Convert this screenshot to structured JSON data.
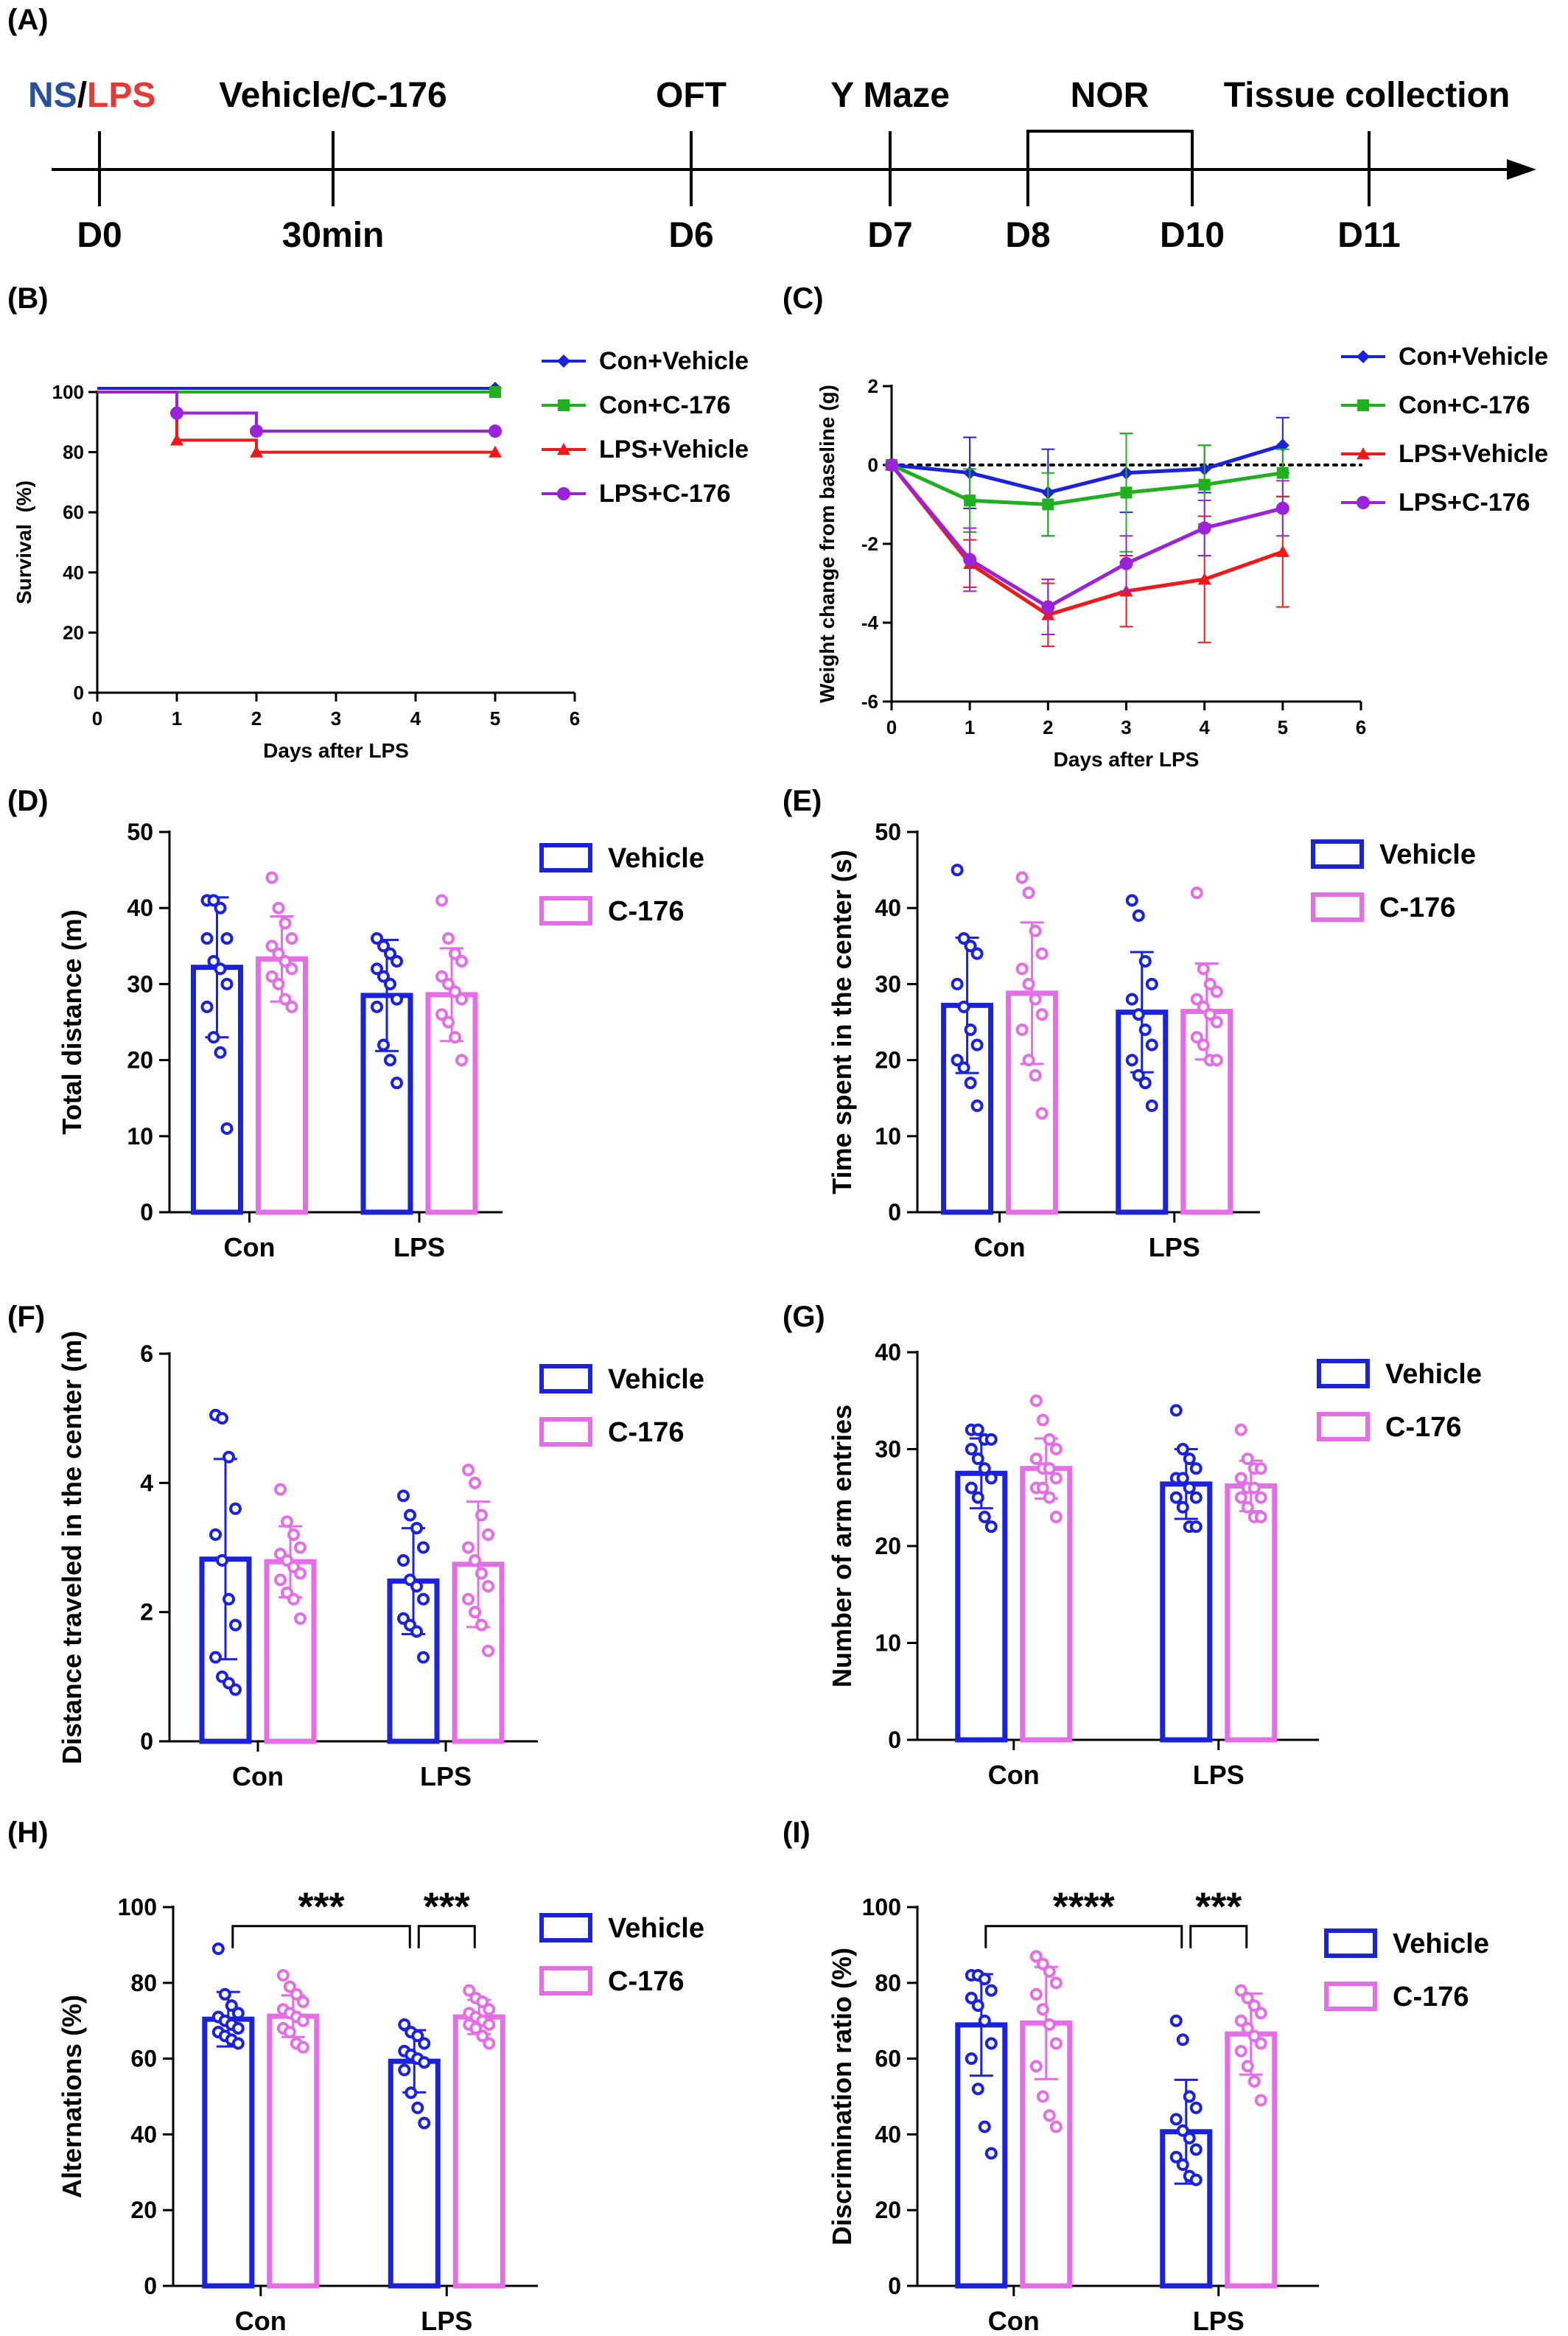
{
  "colors": {
    "blue": "#1a23d9",
    "pink": "#e46ee6",
    "green": "#1faf1f",
    "red": "#f01818",
    "purple": "#9a22d8",
    "ns_blue": "#2a4f9c",
    "lps_red": "#e53935",
    "black": "#000000"
  },
  "timeline": {
    "panel_label": "(A)",
    "top_labels": [
      {
        "id": "ns_lps",
        "parts": [
          {
            "text": "NS",
            "color": "ns_blue"
          },
          {
            "text": "/",
            "color": "black"
          },
          {
            "text": "LPS",
            "color": "lps_red"
          }
        ]
      },
      {
        "id": "vehicle_c176",
        "parts": [
          {
            "text": "Vehicle/C-176",
            "color": "black"
          }
        ]
      },
      {
        "id": "oft",
        "parts": [
          {
            "text": "OFT",
            "color": "black"
          }
        ]
      },
      {
        "id": "ymaze",
        "parts": [
          {
            "text": "Y Maze",
            "color": "black"
          }
        ]
      },
      {
        "id": "nor",
        "parts": [
          {
            "text": "NOR",
            "color": "black"
          }
        ]
      },
      {
        "id": "tissue",
        "parts": [
          {
            "text": "Tissue collection",
            "color": "black"
          }
        ]
      }
    ],
    "bottom_labels": [
      "D0",
      "30min",
      "D6",
      "D7",
      "D8",
      "D10",
      "D11"
    ]
  },
  "chart_data": [
    {
      "panel": "(B)",
      "type": "line",
      "step": true,
      "xlabel": "Days after LPS",
      "ylabel": "Survival  (%)",
      "xlim": [
        0,
        6
      ],
      "ylim": [
        0,
        100
      ],
      "xticks": [
        "0",
        "1",
        "2",
        "3",
        "4",
        "5",
        "6"
      ],
      "yticks": [
        "0",
        "20",
        "40",
        "60",
        "80",
        "100"
      ],
      "series": [
        {
          "name": "Con+Vehicle",
          "color": "blue",
          "marker": "diamond",
          "x": [
            0,
            5
          ],
          "y": [
            100,
            100
          ],
          "markers_x": [
            5
          ],
          "markers_y": [
            100
          ]
        },
        {
          "name": "Con+C-176",
          "color": "green",
          "marker": "square",
          "x": [
            0,
            5
          ],
          "y": [
            100,
            100
          ],
          "markers_x": [
            5
          ],
          "markers_y": [
            100
          ]
        },
        {
          "name": "LPS+Vehicle",
          "color": "red",
          "marker": "triangle",
          "x": [
            0,
            1,
            2,
            5
          ],
          "y": [
            100,
            84,
            80,
            80
          ],
          "markers_x": [
            1,
            2,
            5
          ],
          "markers_y": [
            84,
            80,
            80
          ]
        },
        {
          "name": "LPS+C-176",
          "color": "purple",
          "marker": "circle",
          "x": [
            0,
            1,
            2,
            5
          ],
          "y": [
            100,
            93,
            87,
            87
          ],
          "markers_x": [
            1,
            2,
            5
          ],
          "markers_y": [
            93,
            87,
            87
          ]
        }
      ],
      "legend": "right"
    },
    {
      "panel": "(C)",
      "type": "line",
      "xlabel": "Days after LPS",
      "ylabel": "Weight change from baseline (g)",
      "xlim": [
        0,
        6
      ],
      "ylim": [
        -6,
        2
      ],
      "xticks": [
        "0",
        "1",
        "2",
        "3",
        "4",
        "5",
        "6"
      ],
      "yticks": [
        "-6",
        "-4",
        "-2",
        "0",
        "2"
      ],
      "baseline": 0,
      "series": [
        {
          "name": "Con+Vehicle",
          "color": "blue",
          "marker": "diamond",
          "x": [
            0,
            1,
            2,
            3,
            4,
            5
          ],
          "y": [
            0,
            -0.2,
            -0.7,
            -0.2,
            -0.1,
            0.5
          ],
          "err": [
            0,
            0.9,
            1.1,
            1.0,
            0.6,
            0.7
          ]
        },
        {
          "name": "Con+C-176",
          "color": "green",
          "marker": "square",
          "x": [
            0,
            1,
            2,
            3,
            4,
            5
          ],
          "y": [
            0,
            -0.9,
            -1.0,
            -0.7,
            -0.5,
            -0.2
          ],
          "err": [
            0,
            0.8,
            0.8,
            1.5,
            1.0,
            0.6
          ]
        },
        {
          "name": "LPS+Vehicle",
          "color": "red",
          "marker": "triangle",
          "x": [
            0,
            1,
            2,
            3,
            4,
            5
          ],
          "y": [
            0,
            -2.5,
            -3.8,
            -3.2,
            -2.9,
            -2.2
          ],
          "err": [
            0,
            0.6,
            0.8,
            0.9,
            1.6,
            1.4
          ]
        },
        {
          "name": "LPS+C-176",
          "color": "purple",
          "marker": "circle",
          "x": [
            0,
            1,
            2,
            3,
            4,
            5
          ],
          "y": [
            0,
            -2.4,
            -3.6,
            -2.5,
            -1.6,
            -1.1
          ],
          "err": [
            0,
            0.8,
            0.7,
            0.7,
            0.7,
            0.7
          ]
        }
      ],
      "legend": "right"
    },
    {
      "panel": "(D)",
      "type": "bar",
      "categories": [
        "Con",
        "LPS"
      ],
      "ylabel": "Total distance (m)",
      "ylim": [
        0,
        50
      ],
      "yticks": [
        "0",
        "10",
        "20",
        "30",
        "40",
        "50"
      ],
      "series": [
        {
          "name": "Vehicle",
          "color": "blue",
          "values": [
            32.2,
            28.5
          ],
          "sd": [
            9.2,
            7.3
          ],
          "points": [
            [
              41,
              41,
              40,
              36,
              36,
              33,
              32,
              30,
              27,
              23,
              21,
              11
            ],
            [
              36,
              35,
              34,
              33,
              32,
              31,
              30,
              28,
              27,
              22,
              20,
              17
            ]
          ]
        },
        {
          "name": "C-176",
          "color": "pink",
          "values": [
            33.3,
            28.6
          ],
          "sd": [
            5.6,
            6.1
          ],
          "points": [
            [
              44,
              40,
              38,
              36,
              35,
              34,
              33,
              32,
              31,
              30,
              28,
              27
            ],
            [
              41,
              36,
              34,
              33,
              31,
              30,
              29,
              28,
              26,
              25,
              23,
              20
            ]
          ]
        }
      ],
      "legend": "top-right"
    },
    {
      "panel": "(E)",
      "type": "bar",
      "categories": [
        "Con",
        "LPS"
      ],
      "ylabel": "Time spent in the center (s)",
      "ylim": [
        0,
        50
      ],
      "yticks": [
        "0",
        "10",
        "20",
        "30",
        "40",
        "50"
      ],
      "series": [
        {
          "name": "Vehicle",
          "color": "blue",
          "values": [
            27.2,
            26.3
          ],
          "sd": [
            8.9,
            7.9
          ],
          "points": [
            [
              45,
              36,
              35,
              34,
              30,
              27,
              24,
              22,
              20,
              19,
              17,
              14
            ],
            [
              41,
              39,
              33,
              30,
              28,
              26,
              24,
              22,
              20,
              18,
              17,
              14
            ]
          ]
        },
        {
          "name": "C-176",
          "color": "pink",
          "values": [
            28.8,
            26.4
          ],
          "sd": [
            9.3,
            6.3
          ],
          "points": [
            [
              44,
              42,
              37,
              34,
              32,
              30,
              28,
              26,
              24,
              20,
              18,
              13
            ],
            [
              42,
              32,
              30,
              29,
              28,
              27,
              26,
              25,
              23,
              22,
              20,
              20
            ]
          ]
        }
      ],
      "legend": "top-right"
    },
    {
      "panel": "(F)",
      "type": "bar",
      "categories": [
        "Con",
        "LPS"
      ],
      "ylabel": "Distance traveled in the center (m)",
      "ylim": [
        0,
        6
      ],
      "yticks": [
        "0",
        "2",
        "4",
        "6"
      ],
      "series": [
        {
          "name": "Vehicle",
          "color": "blue",
          "values": [
            2.82,
            2.48
          ],
          "sd": [
            1.55,
            0.82
          ],
          "points": [
            [
              5.05,
              5.0,
              4.4,
              3.6,
              3.2,
              2.8,
              2.2,
              1.8,
              1.3,
              1.0,
              0.9,
              0.8
            ],
            [
              3.8,
              3.5,
              3.3,
              3.0,
              2.8,
              2.5,
              2.4,
              2.2,
              1.9,
              1.8,
              1.7,
              1.3
            ]
          ]
        },
        {
          "name": "C-176",
          "color": "pink",
          "values": [
            2.78,
            2.74
          ],
          "sd": [
            0.55,
            0.97
          ],
          "points": [
            [
              3.9,
              3.4,
              3.2,
              3.0,
              2.9,
              2.8,
              2.7,
              2.6,
              2.5,
              2.3,
              2.2,
              1.9
            ],
            [
              4.2,
              4.0,
              3.5,
              3.2,
              3.0,
              2.8,
              2.6,
              2.4,
              2.2,
              2.0,
              1.8,
              1.4
            ]
          ]
        }
      ],
      "legend": "top-right"
    },
    {
      "panel": "(G)",
      "type": "bar",
      "categories": [
        "Con",
        "LPS"
      ],
      "ylabel": "Number of arm entries",
      "ylim": [
        0,
        40
      ],
      "yticks": [
        "0",
        "10",
        "20",
        "30",
        "40"
      ],
      "series": [
        {
          "name": "Vehicle",
          "color": "blue",
          "values": [
            27.5,
            26.4
          ],
          "sd": [
            3.6,
            3.6
          ],
          "points": [
            [
              32,
              32,
              31,
              31,
              30,
              29,
              28,
              27,
              26,
              25,
              23,
              22
            ],
            [
              34,
              30,
              29,
              28,
              27,
              27,
              26,
              25,
              25,
              24,
              22,
              22
            ]
          ]
        },
        {
          "name": "C-176",
          "color": "pink",
          "values": [
            28.0,
            26.2
          ],
          "sd": [
            3.1,
            2.6
          ],
          "points": [
            [
              35,
              33,
              31,
              30,
              29,
              28,
              28,
              27,
              26,
              26,
              25,
              23
            ],
            [
              32,
              29,
              28,
              28,
              27,
              26,
              26,
              25,
              25,
              24,
              23,
              23
            ]
          ]
        }
      ],
      "legend": "top-right"
    },
    {
      "panel": "(H)",
      "type": "bar",
      "categories": [
        "Con",
        "LPS"
      ],
      "ylabel": "Alternations (%)",
      "ylim": [
        0,
        100
      ],
      "yticks": [
        "0",
        "20",
        "40",
        "60",
        "80",
        "100"
      ],
      "series": [
        {
          "name": "Vehicle",
          "color": "blue",
          "values": [
            70.4,
            59.3
          ],
          "sd": [
            7.2,
            8.2
          ],
          "points": [
            [
              89,
              77,
              74,
              72,
              71,
              70,
              69,
              68,
              67,
              66,
              65,
              64
            ],
            [
              69,
              67,
              66,
              64,
              62,
              61,
              60,
              59,
              57,
              51,
              47,
              43
            ]
          ]
        },
        {
          "name": "C-176",
          "color": "pink",
          "values": [
            71.2,
            71.0
          ],
          "sd": [
            5.5,
            4.5
          ],
          "points": [
            [
              82,
              79,
              77,
              75,
              73,
              72,
              71,
              70,
              68,
              67,
              64,
              63
            ],
            [
              78,
              76,
              75,
              73,
              72,
              71,
              70,
              69,
              69,
              68,
              66,
              64
            ]
          ]
        }
      ],
      "annotations": [
        {
          "text": "***",
          "from": [
            0,
            0
          ],
          "to": [
            1,
            0
          ],
          "level": 95
        },
        {
          "text": "***",
          "from": [
            1,
            0
          ],
          "to": [
            1,
            1
          ],
          "level": 95
        }
      ],
      "legend": "top-right"
    },
    {
      "panel": "(I)",
      "type": "bar",
      "categories": [
        "Con",
        "LPS"
      ],
      "ylabel": "Discrimination ratio (%)",
      "ylim": [
        0,
        100
      ],
      "yticks": [
        "0",
        "20",
        "40",
        "60",
        "80",
        "100"
      ],
      "series": [
        {
          "name": "Vehicle",
          "color": "blue",
          "values": [
            68.9,
            40.7
          ],
          "sd": [
            13.4,
            13.7
          ],
          "points": [
            [
              82,
              82,
              81,
              78,
              76,
              74,
              70,
              64,
              60,
              52,
              42,
              35
            ],
            [
              70,
              65,
              50,
              47,
              44,
              41,
              39,
              36,
              34,
              32,
              29,
              28
            ]
          ]
        },
        {
          "name": "C-176",
          "color": "pink",
          "values": [
            69.4,
            66.5
          ],
          "sd": [
            14.8,
            10.7
          ],
          "points": [
            [
              87,
              85,
              83,
              80,
              77,
              73,
              69,
              64,
              58,
              50,
              45,
              42
            ],
            [
              78,
              76,
              74,
              72,
              70,
              68,
              66,
              64,
              62,
              58,
              54,
              49
            ]
          ]
        }
      ],
      "annotations": [
        {
          "text": "****",
          "from": [
            0,
            0
          ],
          "to": [
            1,
            0
          ],
          "level": 95
        },
        {
          "text": "***",
          "from": [
            1,
            0
          ],
          "to": [
            1,
            1
          ],
          "level": 95
        }
      ],
      "legend": "top-right"
    }
  ]
}
